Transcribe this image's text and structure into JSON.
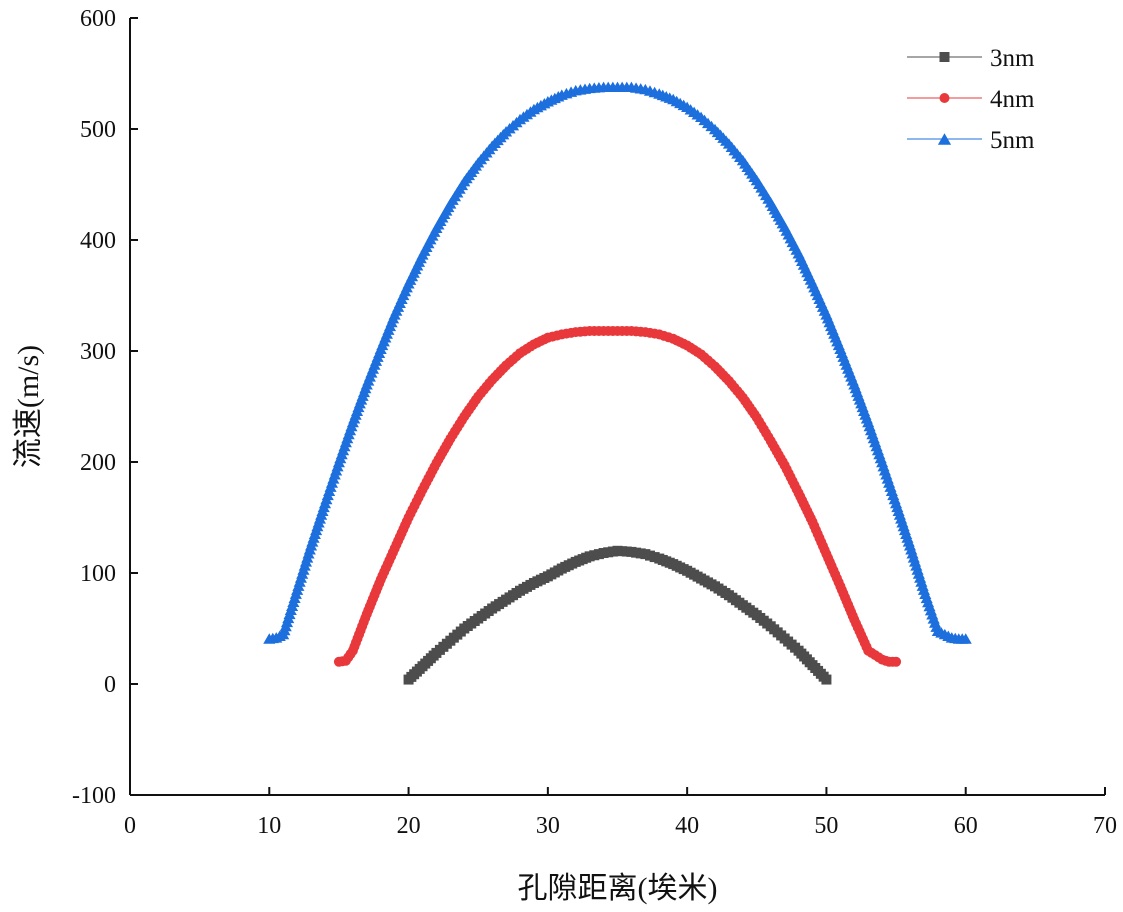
{
  "chart_data": {
    "type": "scatter",
    "title": "",
    "xlabel": "孔隙距离(埃米)",
    "ylabel": "流速(m/s)",
    "xlim": [
      0,
      70
    ],
    "ylim": [
      -100,
      600
    ],
    "xticks": [
      0,
      10,
      20,
      30,
      40,
      50,
      60,
      70
    ],
    "yticks": [
      -100,
      0,
      100,
      200,
      300,
      400,
      500,
      600
    ],
    "grid": false,
    "legend_position": "top-right",
    "series": [
      {
        "name": "3nm",
        "color": "#4d4d4d",
        "marker": "square",
        "x": [
          20,
          21,
          22,
          23,
          24,
          25,
          26,
          27,
          28,
          29,
          30,
          31,
          32,
          33,
          34,
          35,
          36,
          37,
          38,
          39,
          40,
          41,
          42,
          43,
          44,
          45,
          46,
          47,
          48,
          49,
          50
        ],
        "y": [
          4,
          16,
          28,
          39,
          50,
          59,
          68,
          76,
          84,
          91,
          97,
          104,
          110,
          115,
          118,
          120,
          119,
          117,
          113,
          108,
          102,
          95,
          88,
          80,
          71,
          62,
          52,
          41,
          30,
          17,
          4
        ]
      },
      {
        "name": "4nm",
        "color": "#e8383b",
        "marker": "circle",
        "x": [
          15,
          15.5,
          16,
          17,
          18,
          19,
          20,
          21,
          22,
          23,
          24,
          25,
          26,
          27,
          28,
          29,
          30,
          31,
          32,
          33,
          34,
          35,
          36,
          37,
          38,
          39,
          40,
          41,
          42,
          43,
          44,
          45,
          46,
          47,
          48,
          49,
          50,
          51,
          52,
          53,
          54,
          54.5,
          55
        ],
        "y": [
          20,
          21,
          30,
          63,
          94,
          122,
          150,
          175,
          199,
          221,
          241,
          259,
          274,
          287,
          298,
          306,
          312,
          315,
          317,
          318,
          318,
          318,
          318,
          317,
          315,
          311,
          305,
          297,
          286,
          273,
          258,
          240,
          219,
          197,
          172,
          146,
          117,
          88,
          58,
          30,
          22,
          20,
          20
        ]
      },
      {
        "name": "5nm",
        "color": "#1c6fdd",
        "marker": "triangle",
        "x": [
          10,
          10.5,
          11,
          12,
          13,
          14,
          15,
          16,
          17,
          18,
          19,
          20,
          21,
          22,
          23,
          24,
          25,
          26,
          27,
          28,
          29,
          30,
          31,
          32,
          33,
          34,
          35,
          36,
          37,
          38,
          39,
          40,
          41,
          42,
          43,
          44,
          45,
          46,
          47,
          48,
          49,
          50,
          51,
          52,
          53,
          54,
          55,
          56,
          57,
          58,
          59,
          59.5,
          60
        ],
        "y": [
          41,
          42,
          45,
          85,
          125,
          163,
          200,
          236,
          270,
          302,
          333,
          361,
          387,
          411,
          433,
          453,
          470,
          485,
          498,
          509,
          518,
          525,
          531,
          535,
          537,
          538,
          538,
          538,
          536,
          532,
          527,
          520,
          511,
          500,
          487,
          472,
          454,
          434,
          412,
          388,
          361,
          333,
          302,
          270,
          236,
          200,
          163,
          125,
          85,
          48,
          42,
          41,
          41
        ]
      }
    ]
  }
}
